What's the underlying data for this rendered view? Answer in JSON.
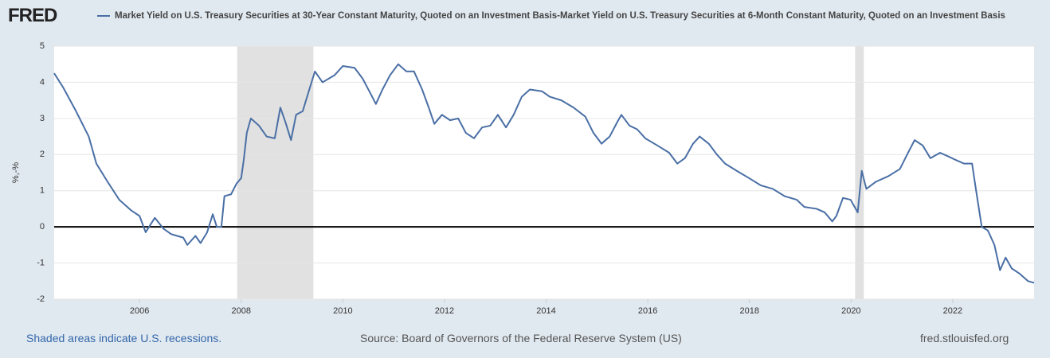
{
  "logo": "FRED",
  "footer": {
    "note": "Shaded areas indicate U.S. recessions.",
    "source": "Source: Board of Governors of the Federal Reserve System (US)",
    "site": "fred.stlouisfed.org"
  },
  "chart_data": {
    "type": "line",
    "y_label": "%,-%",
    "xlim": [
      2004.32,
      2023.6
    ],
    "ylim": [
      -2,
      5
    ],
    "xticks": [
      2006,
      2008,
      2010,
      2012,
      2014,
      2016,
      2018,
      2020,
      2022
    ],
    "yticks": [
      -2,
      -1,
      0,
      1,
      2,
      3,
      4,
      5
    ],
    "grid": true,
    "recessions": [
      [
        2007.92,
        2009.42
      ],
      [
        2020.08,
        2020.25
      ]
    ],
    "recession_color": "#e1e1e1",
    "x": [
      2004.32,
      2004.5,
      2004.75,
      2005.0,
      2005.15,
      2005.37,
      2005.6,
      2005.84,
      2006.0,
      2006.12,
      2006.3,
      2006.47,
      2006.62,
      2006.86,
      2006.94,
      2007.1,
      2007.2,
      2007.33,
      2007.44,
      2007.52,
      2007.61,
      2007.67,
      2007.8,
      2007.91,
      2008.0,
      2008.05,
      2008.11,
      2008.19,
      2008.35,
      2008.5,
      2008.66,
      2008.77,
      2008.87,
      2008.98,
      2009.08,
      2009.21,
      2009.34,
      2009.45,
      2009.6,
      2009.84,
      2010.0,
      2010.23,
      2010.39,
      2010.54,
      2010.65,
      2010.78,
      2010.93,
      2011.09,
      2011.25,
      2011.4,
      2011.56,
      2011.69,
      2011.8,
      2011.95,
      2012.11,
      2012.27,
      2012.42,
      2012.58,
      2012.74,
      2012.9,
      2013.05,
      2013.21,
      2013.36,
      2013.52,
      2013.68,
      2013.92,
      2014.07,
      2014.3,
      2014.54,
      2014.77,
      2014.93,
      2015.09,
      2015.25,
      2015.4,
      2015.48,
      2015.64,
      2015.79,
      2015.95,
      2016.19,
      2016.42,
      2016.58,
      2016.73,
      2016.89,
      2017.02,
      2017.2,
      2017.36,
      2017.52,
      2017.75,
      2017.99,
      2018.22,
      2018.46,
      2018.69,
      2018.93,
      2019.08,
      2019.32,
      2019.48,
      2019.63,
      2019.71,
      2019.84,
      2019.99,
      2020.13,
      2020.21,
      2020.3,
      2020.49,
      2020.73,
      2020.96,
      2021.12,
      2021.25,
      2021.41,
      2021.56,
      2021.75,
      2021.91,
      2022.06,
      2022.22,
      2022.38,
      2022.46,
      2022.57,
      2022.69,
      2022.82,
      2022.93,
      2023.04,
      2023.16,
      2023.32,
      2023.48,
      2023.6
    ],
    "series": [
      {
        "name": "Market Yield on U.S. Treasury Securities at 30-Year Constant Maturity, Quoted on an Investment Basis-Market Yield on U.S. Treasury Securities at 6-Month Constant Maturity, Quoted on an Investment Basis",
        "color": "#4a6fa5",
        "values": [
          4.25,
          3.85,
          3.2,
          2.5,
          1.75,
          1.25,
          0.75,
          0.45,
          0.3,
          -0.15,
          0.25,
          -0.05,
          -0.2,
          -0.3,
          -0.5,
          -0.25,
          -0.45,
          -0.15,
          0.35,
          0.0,
          0.0,
          0.85,
          0.9,
          1.2,
          1.35,
          1.85,
          2.6,
          3.0,
          2.8,
          2.5,
          2.45,
          3.3,
          2.9,
          2.4,
          3.1,
          3.2,
          3.8,
          4.3,
          4.0,
          4.2,
          4.45,
          4.4,
          4.1,
          3.7,
          3.4,
          3.8,
          4.2,
          4.5,
          4.3,
          4.3,
          3.8,
          3.3,
          2.85,
          3.1,
          2.95,
          3.0,
          2.6,
          2.45,
          2.75,
          2.8,
          3.1,
          2.75,
          3.1,
          3.6,
          3.8,
          3.75,
          3.6,
          3.5,
          3.3,
          3.05,
          2.6,
          2.3,
          2.5,
          2.9,
          3.1,
          2.8,
          2.7,
          2.45,
          2.25,
          2.05,
          1.75,
          1.9,
          2.3,
          2.5,
          2.3,
          2.0,
          1.75,
          1.55,
          1.35,
          1.15,
          1.05,
          0.85,
          0.75,
          0.55,
          0.5,
          0.4,
          0.15,
          0.3,
          0.8,
          0.75,
          0.4,
          1.55,
          1.05,
          1.25,
          1.4,
          1.6,
          2.05,
          2.4,
          2.25,
          1.9,
          2.05,
          1.95,
          1.85,
          1.75,
          1.75,
          1.0,
          0.0,
          -0.1,
          -0.5,
          -1.2,
          -0.85,
          -1.15,
          -1.3,
          -1.5,
          -1.55
        ]
      }
    ]
  }
}
